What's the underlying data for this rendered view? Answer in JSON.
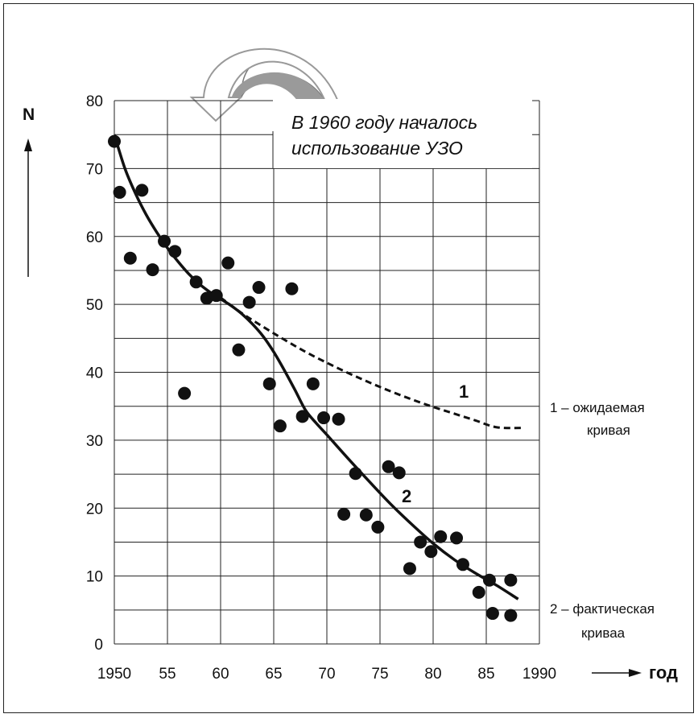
{
  "chart_data": {
    "type": "scatter",
    "x_label": "год",
    "y_label": "N",
    "x_ticks": [
      "1950",
      "55",
      "60",
      "65",
      "70",
      "75",
      "80",
      "85",
      "1990"
    ],
    "y_ticks": [
      "0",
      "10",
      "20",
      "30",
      "40",
      "50",
      "60",
      "70",
      "80"
    ],
    "xlim": [
      1950,
      1990
    ],
    "ylim": [
      0,
      80
    ],
    "grid": true,
    "annotation": "В 1960 году началось\nиспользование УЗО",
    "points": [
      [
        1950,
        74
      ],
      [
        1950.5,
        66.5
      ],
      [
        1951.5,
        56.8
      ],
      [
        1952.6,
        66.8
      ],
      [
        1953.6,
        55.1
      ],
      [
        1954.7,
        59.3
      ],
      [
        1955.7,
        57.8
      ],
      [
        1956.6,
        36.9
      ],
      [
        1957.7,
        53.3
      ],
      [
        1958.7,
        50.9
      ],
      [
        1959.6,
        51.3
      ],
      [
        1960.7,
        56.1
      ],
      [
        1961.7,
        43.3
      ],
      [
        1962.7,
        50.3
      ],
      [
        1963.6,
        52.5
      ],
      [
        1964.6,
        38.3
      ],
      [
        1965.6,
        32.1
      ],
      [
        1966.7,
        52.3
      ],
      [
        1967.7,
        33.5
      ],
      [
        1968.7,
        38.3
      ],
      [
        1969.7,
        33.3
      ],
      [
        1971.1,
        33.1
      ],
      [
        1971.6,
        19.1
      ],
      [
        1972.7,
        25.1
      ],
      [
        1973.7,
        19.0
      ],
      [
        1974.8,
        17.2
      ],
      [
        1975.8,
        26.1
      ],
      [
        1976.8,
        25.2
      ],
      [
        1977.8,
        11.1
      ],
      [
        1978.8,
        15.0
      ],
      [
        1979.8,
        13.6
      ],
      [
        1980.7,
        15.8
      ],
      [
        1982.2,
        15.6
      ],
      [
        1982.8,
        11.7
      ],
      [
        1984.3,
        7.6
      ],
      [
        1985.3,
        9.4
      ],
      [
        1985.6,
        4.5
      ],
      [
        1987.3,
        4.2
      ],
      [
        1987.3,
        9.4
      ]
    ],
    "series": [
      {
        "name": "1",
        "style": "dashed",
        "x": [
          1960,
          1962,
          1964,
          1966,
          1968,
          1970,
          1972,
          1974,
          1976,
          1978,
          1980,
          1982,
          1984,
          1986,
          1988.5
        ],
        "y": [
          51,
          48.7,
          46.7,
          44.8,
          43.0,
          41.4,
          39.9,
          38.5,
          37.2,
          36.0,
          34.9,
          33.9,
          32.9,
          31.9,
          31.8
        ]
      },
      {
        "name": "2",
        "style": "solid",
        "x": [
          1950,
          1951,
          1952,
          1953,
          1954,
          1955,
          1956,
          1957,
          1958,
          1959,
          1960,
          1961,
          1962,
          1963,
          1964,
          1965,
          1966,
          1967,
          1968,
          1969,
          1970,
          1972,
          1974,
          1976,
          1978,
          1980,
          1982,
          1984,
          1986,
          1988
        ],
        "y": [
          75,
          70,
          66.3,
          63.2,
          60.6,
          58.3,
          56.3,
          54.5,
          53.0,
          51.8,
          50.8,
          49.8,
          48.6,
          47.1,
          45.3,
          43.0,
          40.3,
          37.4,
          34.4,
          32.5,
          30.8,
          27.3,
          23.9,
          20.6,
          17.6,
          14.8,
          12.4,
          10.4,
          8.6,
          6.6
        ]
      }
    ],
    "legend": [
      {
        "number": "1",
        "line1": "1 – ожидаемая",
        "line2": "кривая"
      },
      {
        "number": "2",
        "line1": "2 – фактическая",
        "line2": "криваа"
      }
    ],
    "colors": {
      "ink": "#111111",
      "arrow_fill": "#999999",
      "grid": "#222222"
    }
  }
}
